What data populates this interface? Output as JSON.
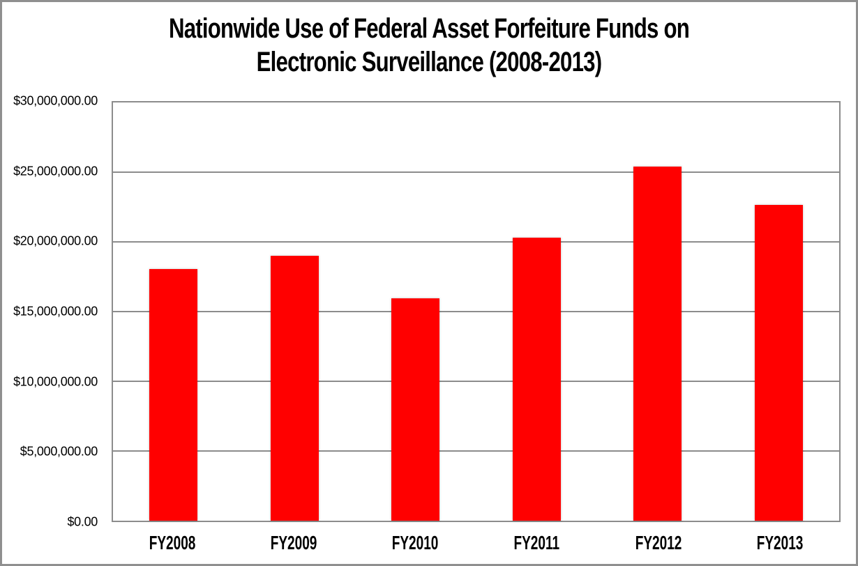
{
  "header": {
    "title_line1": "Nationwide Use of Federal Asset Forfeiture Funds on",
    "title_line2": "Electronic Surveillance (2008-2013)"
  },
  "chart_data": {
    "type": "bar",
    "title": "Nationwide Use of Federal Asset Forfeiture Funds on Electronic Surveillance (2008-2013)",
    "categories": [
      "FY2008",
      "FY2009",
      "FY2010",
      "FY2011",
      "FY2012",
      "FY2013"
    ],
    "values": [
      18050000,
      19000000,
      15950000,
      20300000,
      25400000,
      22650000
    ],
    "xlabel": "",
    "ylabel": "",
    "ylim": [
      0,
      30000000
    ],
    "ytick_interval": 5000000,
    "ytick_labels_bottom_to_top": [
      "$0.00",
      "$5,000,000.00",
      "$10,000,000.00",
      "$15,000,000.00",
      "$20,000,000.00",
      "$25,000,000.00",
      "$30,000,000.00"
    ],
    "grid": true,
    "legend": false,
    "bar_color": "#ff0000",
    "gridline_color": "#8c8c8c",
    "plot_border_color": "#8c8c8c",
    "frame_border_color": "#8f8f8f"
  }
}
